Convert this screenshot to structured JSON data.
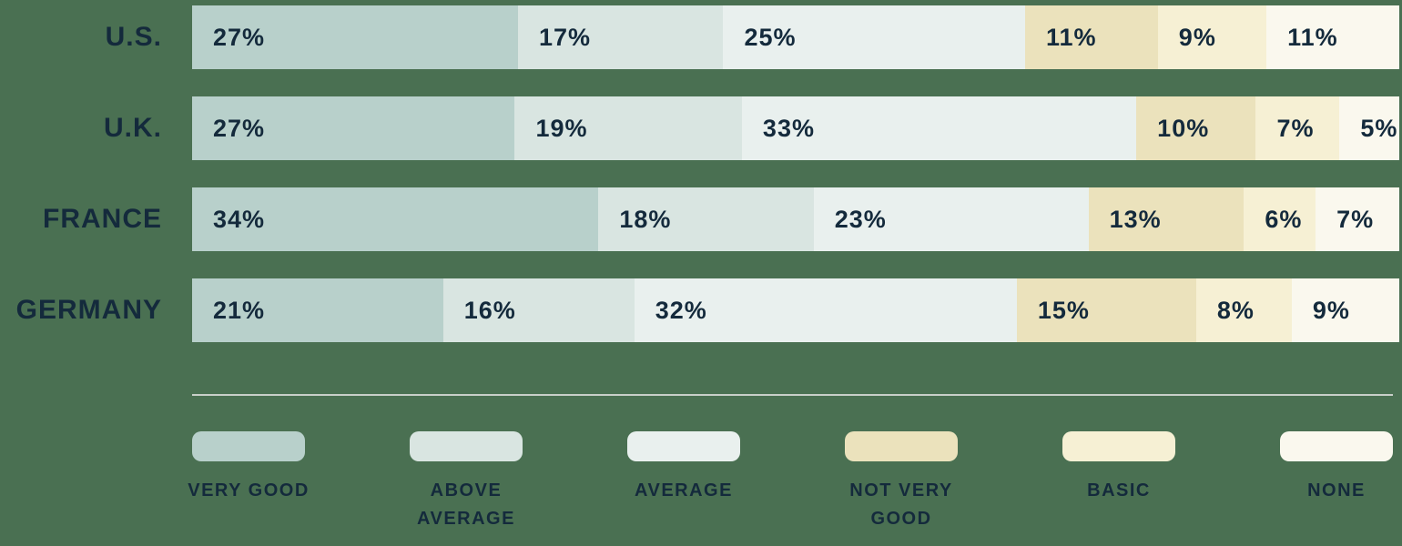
{
  "colors": {
    "background": "#4a7052",
    "text": "#142a3c",
    "divider": "#c9cfc9"
  },
  "chart_data": {
    "type": "bar",
    "stacked": true,
    "orientation": "horizontal",
    "title": "",
    "xlabel": "",
    "ylabel": "",
    "grid": false,
    "legend_position": "bottom",
    "value_suffix": "%",
    "categories": [
      "U.S.",
      "U.K.",
      "FRANCE",
      "GERMANY"
    ],
    "series": [
      {
        "name": "Very Good",
        "legend_label": "VERY GOOD",
        "color": "#b8d0cb",
        "values": [
          27,
          27,
          34,
          21
        ]
      },
      {
        "name": "Above Average",
        "legend_label": "ABOVE\nAVERAGE",
        "color": "#d9e5e1",
        "values": [
          17,
          19,
          18,
          16
        ]
      },
      {
        "name": "Average",
        "legend_label": "AVERAGE",
        "color": "#e9f0ee",
        "values": [
          25,
          33,
          23,
          32
        ]
      },
      {
        "name": "Not Very Good",
        "legend_label": "NOT VERY\nGOOD",
        "color": "#ebe2bc",
        "values": [
          11,
          10,
          13,
          15
        ]
      },
      {
        "name": "Basic",
        "legend_label": "BASIC",
        "color": "#f6f0d4",
        "values": [
          9,
          7,
          6,
          8
        ]
      },
      {
        "name": "None",
        "legend_label": "NONE",
        "color": "#faf8ee",
        "values": [
          11,
          5,
          7,
          9
        ]
      }
    ]
  }
}
